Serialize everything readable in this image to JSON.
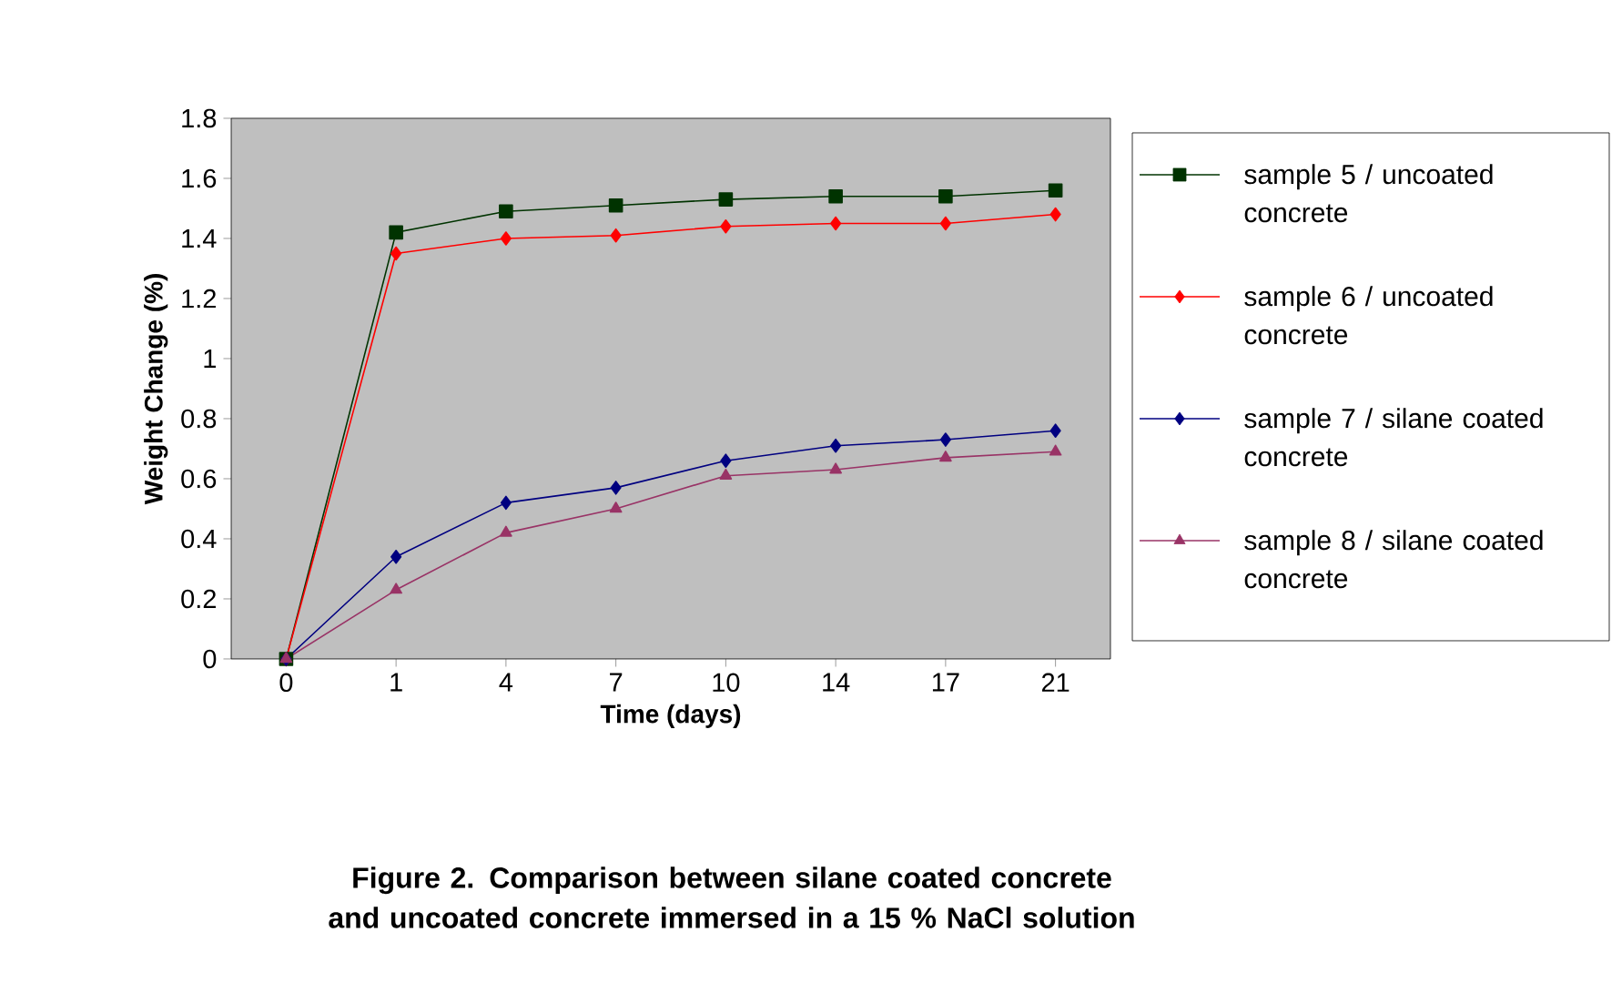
{
  "chart_data": {
    "type": "line",
    "title": "Figure 2. Comparison between silane coated concrete and uncoated concrete immersed in a 15 % NaCl solution",
    "xlabel": "Time (days)",
    "ylabel": "Weight Change (%)",
    "categories": [
      "0",
      "1",
      "4",
      "7",
      "10",
      "14",
      "17",
      "21"
    ],
    "series": [
      {
        "name": "sample 5  / uncoated concrete",
        "color": "#003300",
        "marker": "square",
        "values": [
          0,
          1.42,
          1.49,
          1.51,
          1.53,
          1.54,
          1.54,
          1.56
        ]
      },
      {
        "name": "sample 6 / uncoated concrete",
        "color": "#ff0000",
        "marker": "diamond",
        "values": [
          0,
          1.35,
          1.4,
          1.41,
          1.44,
          1.45,
          1.45,
          1.48
        ]
      },
      {
        "name": "sample 7 / silane coated concrete",
        "color": "#000080",
        "marker": "diamond",
        "values": [
          0,
          0.34,
          0.52,
          0.57,
          0.66,
          0.71,
          0.73,
          0.76
        ]
      },
      {
        "name": "sample 8 / silane coated concrete",
        "color": "#993366",
        "marker": "triangle",
        "values": [
          0,
          0.23,
          0.42,
          0.5,
          0.61,
          0.63,
          0.67,
          0.69
        ]
      }
    ],
    "ylim": [
      0,
      1.8
    ],
    "yticks": [
      0,
      0.2,
      0.4,
      0.6,
      0.8,
      1,
      1.2,
      1.4,
      1.6,
      1.8
    ],
    "grid": false,
    "legend": "right",
    "line_style": "solid"
  }
}
